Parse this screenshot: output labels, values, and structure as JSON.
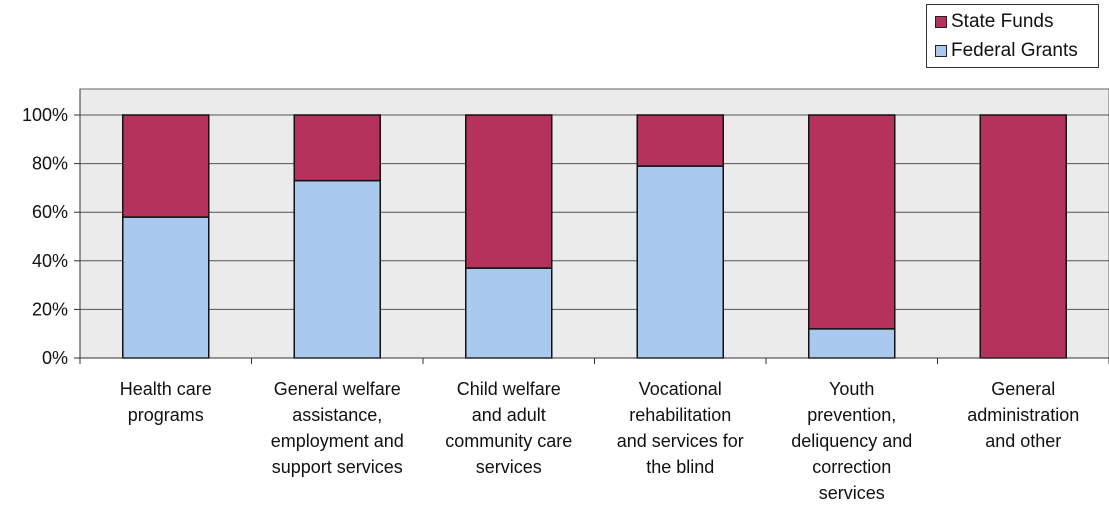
{
  "chart_data": {
    "type": "bar",
    "stacked": true,
    "percent_stacked": true,
    "categories": [
      [
        "Health care",
        "programs"
      ],
      [
        "General welfare",
        "assistance,",
        "employment and",
        "support services"
      ],
      [
        "Child welfare",
        "and adult",
        "community care",
        "services"
      ],
      [
        "Vocational",
        "rehabilitation",
        "and services for",
        "the blind"
      ],
      [
        "Youth",
        "prevention,",
        "deliquency and",
        "correction",
        "services"
      ],
      [
        "General",
        "administration",
        "and  other"
      ]
    ],
    "series": [
      {
        "name": "Federal Grants",
        "color": "#a9c9ef",
        "values": [
          58,
          73,
          37,
          79,
          12,
          0
        ]
      },
      {
        "name": "State Funds",
        "color": "#b5325c",
        "values": [
          42,
          27,
          63,
          21,
          88,
          100
        ]
      }
    ],
    "legend_order": [
      "State Funds",
      "Federal Grants"
    ],
    "yticks": [
      "0%",
      "20%",
      "40%",
      "60%",
      "80%",
      "100%"
    ],
    "ylim": [
      0,
      100
    ],
    "grid": true,
    "legend_position": "top-right",
    "plot_background": "#ebebeb"
  }
}
